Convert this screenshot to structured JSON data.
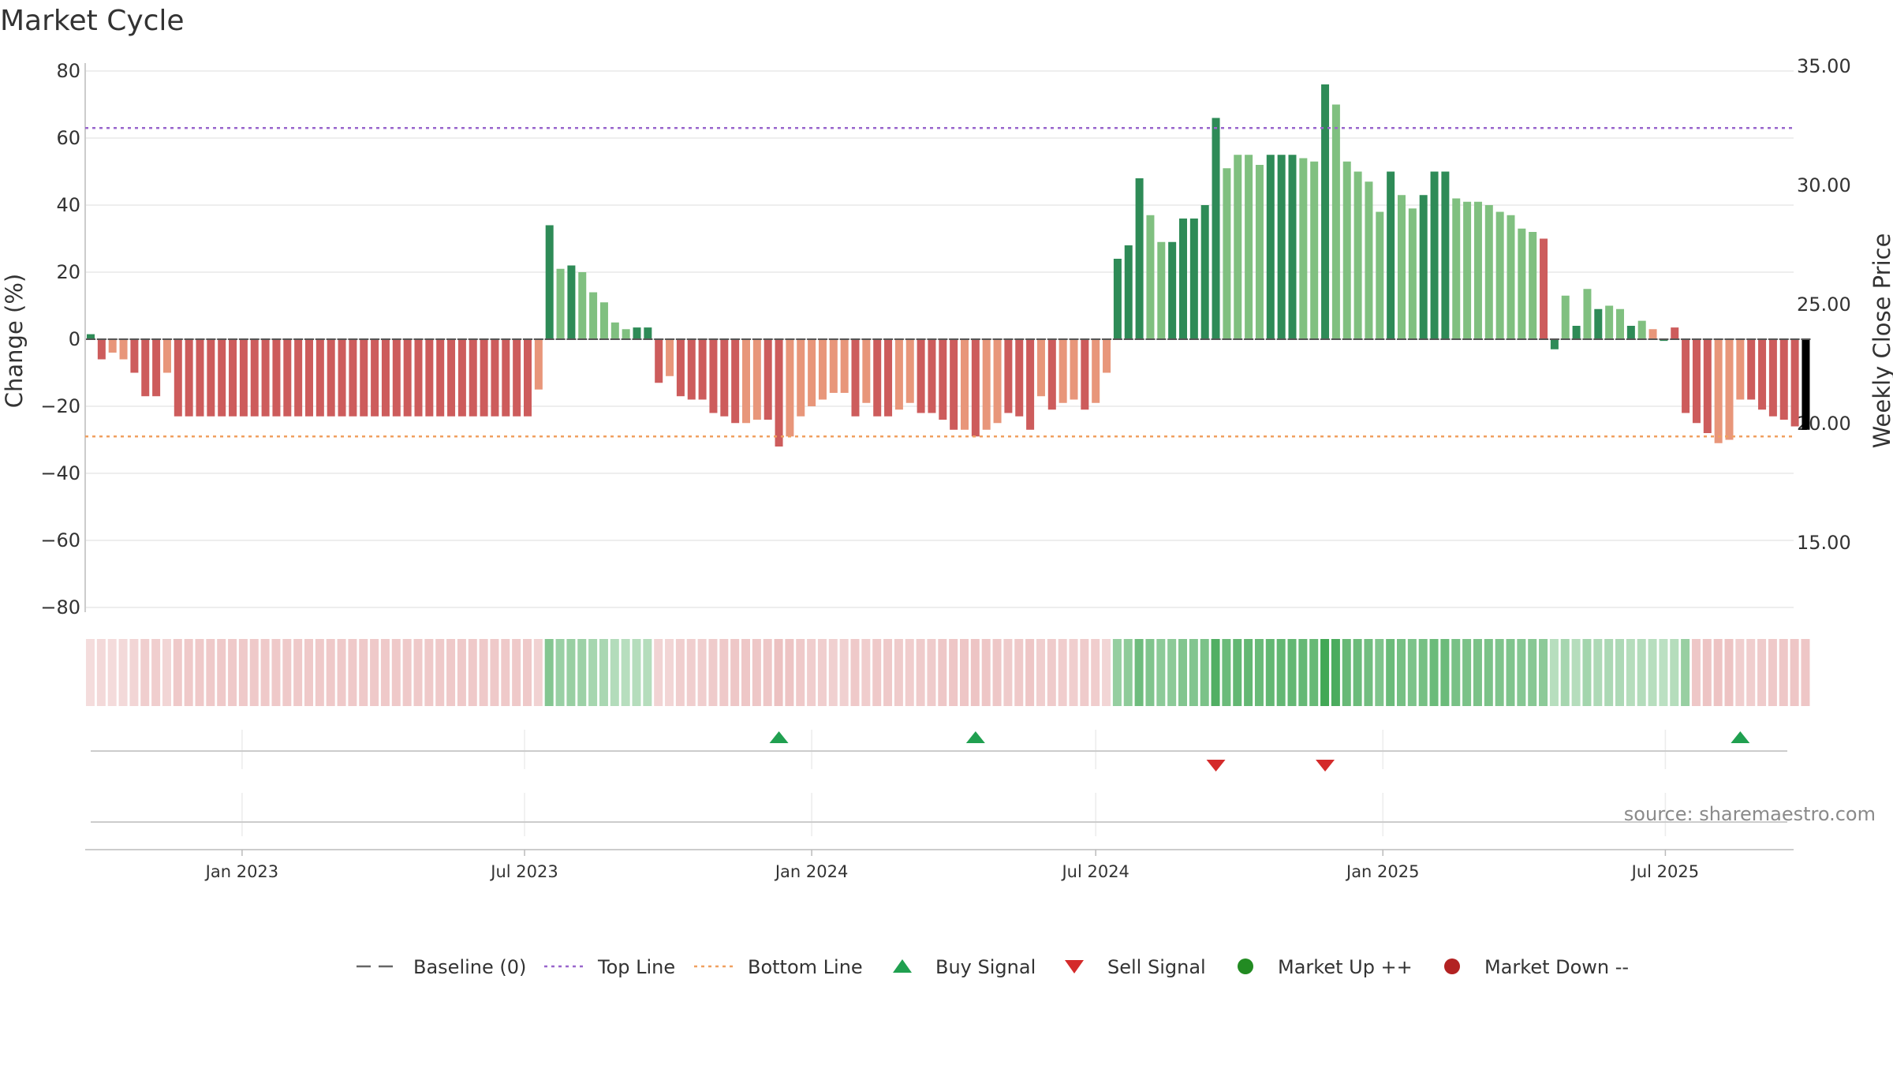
{
  "chart_data": {
    "type": "bar",
    "title": "Market Cycle",
    "ylabel": "Change (%)",
    "y2label": "Weekly Close Price",
    "ylim": [
      -80,
      80
    ],
    "y2lim": [
      10,
      35
    ],
    "yticks": [
      "80",
      "60",
      "40",
      "20",
      "0",
      "−20",
      "−40",
      "−60",
      "−80"
    ],
    "y2ticks": [
      "35.00",
      "30.00",
      "25.00",
      "20.00",
      "15.00"
    ],
    "xticks": [
      "Jan 2023",
      "Jul 2023",
      "Jan 2024",
      "Jul 2024",
      "Jan 2025",
      "Jul 2025"
    ],
    "grid": true,
    "start_date": "2022-09-26",
    "frequency": "weekly",
    "top_line": 63,
    "bottom_line": -29,
    "values": [
      1.5,
      -6,
      -4,
      -6,
      -10,
      -17,
      -17,
      -10,
      -23,
      -23,
      -23,
      -23,
      -23,
      -23,
      -23,
      -23,
      -23,
      -23,
      -23,
      -23,
      -23,
      -23,
      -23,
      -23,
      -23,
      -23,
      -23,
      -23,
      -23,
      -23,
      -23,
      -23,
      -23,
      -23,
      -23,
      -23,
      -23,
      -23,
      -23,
      -23,
      -23,
      -15,
      34,
      21,
      22,
      20,
      14,
      11,
      5,
      3,
      3.5,
      3.5,
      -13,
      -11,
      -17,
      -18,
      -18,
      -22,
      -23,
      -25,
      -25,
      -24,
      -24,
      -32,
      -29,
      -23,
      -20,
      -18,
      -16,
      -16,
      -23,
      -19,
      -23,
      -23,
      -21,
      -19,
      -22,
      -22,
      -24,
      -27,
      -27,
      -29,
      -27,
      -25,
      -22,
      -23,
      -27,
      -17,
      -21,
      -19,
      -18,
      -21,
      -19,
      -10,
      24,
      28,
      48,
      37,
      29,
      29,
      36,
      36,
      40,
      66,
      51,
      55,
      55,
      52,
      55,
      55,
      55,
      54,
      53,
      76,
      70,
      53,
      50,
      47,
      38,
      50,
      43,
      39,
      43,
      50,
      50,
      42,
      41,
      41,
      40,
      38,
      37,
      33,
      32,
      30,
      -3,
      13,
      4,
      15,
      9,
      10,
      9,
      4,
      5.5,
      3,
      -0.5,
      3.5,
      -22,
      -25,
      -28,
      -31,
      -30,
      -18,
      -18,
      -21,
      -23,
      -24,
      -26,
      -27
    ],
    "bar_color_codes": [
      2,
      0,
      1,
      1,
      0,
      0,
      0,
      1,
      0,
      0,
      0,
      0,
      0,
      0,
      0,
      0,
      0,
      0,
      0,
      0,
      0,
      0,
      0,
      0,
      0,
      0,
      0,
      0,
      0,
      0,
      0,
      0,
      0,
      0,
      0,
      0,
      0,
      0,
      0,
      0,
      0,
      1,
      2,
      3,
      2,
      3,
      3,
      3,
      3,
      3,
      2,
      2,
      0,
      1,
      0,
      0,
      0,
      0,
      0,
      0,
      1,
      1,
      0,
      0,
      1,
      1,
      1,
      1,
      1,
      1,
      0,
      1,
      0,
      0,
      1,
      1,
      0,
      0,
      0,
      0,
      1,
      0,
      1,
      1,
      0,
      0,
      0,
      1,
      0,
      1,
      1,
      0,
      1,
      1,
      2,
      2,
      2,
      3,
      3,
      2,
      2,
      2,
      2,
      2,
      3,
      3,
      3,
      3,
      2,
      2,
      2,
      3,
      3,
      2,
      3,
      3,
      3,
      3,
      3,
      2,
      3,
      3,
      2,
      2,
      2,
      3,
      3,
      3,
      3,
      3,
      3,
      3,
      3,
      0,
      2,
      3,
      2,
      3,
      2,
      3,
      3,
      2,
      3,
      1,
      2,
      0,
      0,
      0,
      0,
      1,
      1,
      1,
      0,
      0,
      0,
      0,
      0
    ],
    "regime_shades": [
      2,
      2,
      2,
      2,
      2,
      2,
      2,
      2,
      2,
      2,
      2,
      2,
      2,
      2,
      2,
      2,
      2,
      2,
      2,
      2,
      2,
      2,
      2,
      2,
      2,
      2,
      2,
      2,
      2,
      2,
      2,
      2,
      2,
      2,
      2,
      2,
      2,
      2,
      2,
      2,
      2,
      2,
      1,
      1,
      1,
      1,
      1,
      1,
      1,
      1,
      1,
      1,
      2,
      2,
      2,
      2,
      2,
      2,
      2,
      2,
      2,
      2,
      2,
      2,
      2,
      2,
      2,
      2,
      2,
      2,
      2,
      2,
      2,
      2,
      2,
      2,
      2,
      2,
      2,
      2,
      2,
      2,
      2,
      2,
      2,
      2,
      2,
      2,
      2,
      2,
      2,
      2,
      2,
      2,
      1,
      1,
      1,
      1,
      1,
      1,
      1,
      1,
      1,
      1,
      1,
      1,
      1,
      1,
      1,
      1,
      1,
      1,
      1,
      1,
      1,
      1,
      1,
      1,
      1,
      1,
      1,
      1,
      1,
      1,
      1,
      1,
      1,
      1,
      1,
      1,
      1,
      1,
      1,
      1,
      1,
      1,
      1,
      1,
      1,
      1,
      1,
      1,
      1,
      1,
      1,
      1,
      1,
      2,
      2,
      2,
      2,
      2,
      2,
      2,
      2,
      2,
      2,
      2,
      2
    ],
    "buy_signals": [
      63,
      81,
      151
    ],
    "sell_signals": [
      103,
      113
    ],
    "colors": {
      "strong_up": "#2e8b57",
      "up": "#80c080",
      "strong_down": "#cd5c5c",
      "down": "#e8967a",
      "top_line": "#9966cc",
      "bottom_line": "#f0a060",
      "buy": "#20a050",
      "sell": "#d42a2a",
      "market_up": "#228b22",
      "market_down": "#b22222"
    }
  },
  "legend": [
    {
      "label": "Baseline (0)",
      "symbol": "dash"
    },
    {
      "label": "Top Line",
      "symbol": "dot-purple"
    },
    {
      "label": "Bottom Line",
      "symbol": "dot-orange"
    },
    {
      "label": "Buy Signal",
      "symbol": "triangle-up"
    },
    {
      "label": "Sell Signal",
      "symbol": "triangle-down"
    },
    {
      "label": "Market Up ++",
      "symbol": "circle-green"
    },
    {
      "label": "Market Down --",
      "symbol": "circle-red"
    }
  ],
  "source": "source: sharemaestro.com"
}
